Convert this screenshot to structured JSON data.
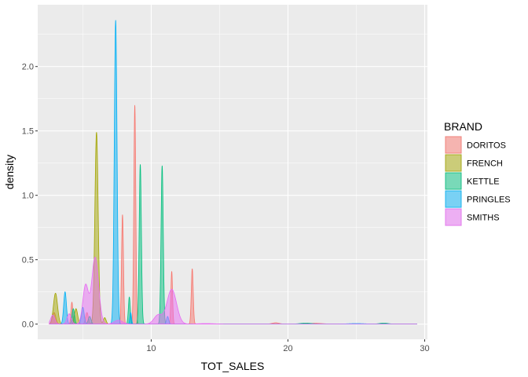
{
  "chart_data": {
    "type": "area",
    "subtype": "density",
    "title": "",
    "xlabel": "TOT_SALES",
    "ylabel": "density",
    "xlim": [
      1.7,
      30.2
    ],
    "ylim": [
      -0.118,
      2.48
    ],
    "x_ticks": [
      10,
      20,
      30
    ],
    "y_ticks": [
      0.0,
      0.5,
      1.0,
      1.5,
      2.0
    ],
    "x_tick_labels": [
      "10",
      "20",
      "30"
    ],
    "y_tick_labels": [
      "0.0",
      "0.5",
      "1.0",
      "1.5",
      "2.0"
    ],
    "grid": true,
    "legend": {
      "title": "BRAND",
      "position": "right"
    },
    "fill_opacity": 0.5,
    "series": [
      {
        "name": "DORITOS",
        "color": "#F8766D",
        "peaks": [
          [
            2.9,
            0.09,
            0.12
          ],
          [
            4.2,
            0.17,
            0.07
          ],
          [
            5.3,
            0.09,
            0.1
          ],
          [
            7.9,
            0.85,
            0.07
          ],
          [
            8.8,
            1.7,
            0.07
          ],
          [
            11.5,
            0.41,
            0.06
          ],
          [
            13.0,
            0.43,
            0.07
          ],
          [
            19.1,
            0.01,
            0.25
          ],
          [
            22.0,
            0.006,
            0.5
          ]
        ]
      },
      {
        "name": "FRENCH",
        "color": "#A3A500",
        "peaks": [
          [
            3.0,
            0.24,
            0.15
          ],
          [
            4.5,
            0.12,
            0.12
          ],
          [
            6.0,
            1.49,
            0.12
          ],
          [
            6.6,
            0.05,
            0.1
          ]
        ]
      },
      {
        "name": "KETTLE",
        "color": "#00BF7D",
        "peaks": [
          [
            4.3,
            0.12,
            0.09
          ],
          [
            5.5,
            0.06,
            0.1
          ],
          [
            8.4,
            0.21,
            0.07
          ],
          [
            9.2,
            1.24,
            0.08
          ],
          [
            10.8,
            1.23,
            0.08
          ],
          [
            21.3,
            0.008,
            0.4
          ],
          [
            27.0,
            0.008,
            0.3
          ]
        ]
      },
      {
        "name": "PRINGLES",
        "color": "#00B0F6",
        "peaks": [
          [
            3.7,
            0.25,
            0.1
          ],
          [
            5.0,
            0.13,
            0.1
          ],
          [
            7.4,
            2.36,
            0.1
          ],
          [
            8.5,
            0.09,
            0.06
          ],
          [
            11.2,
            0.06,
            0.08
          ],
          [
            25.0,
            0.004,
            0.6
          ]
        ]
      },
      {
        "name": "SMITHS",
        "color": "#E76BF3",
        "peaks": [
          [
            2.8,
            0.07,
            0.15
          ],
          [
            4.0,
            0.08,
            0.15
          ],
          [
            5.2,
            0.3,
            0.2
          ],
          [
            5.9,
            0.52,
            0.25
          ],
          [
            7.6,
            0.03,
            0.3
          ],
          [
            10.5,
            0.07,
            0.3
          ],
          [
            11.5,
            0.27,
            0.35
          ],
          [
            14.0,
            0.004,
            0.6
          ]
        ]
      }
    ]
  }
}
